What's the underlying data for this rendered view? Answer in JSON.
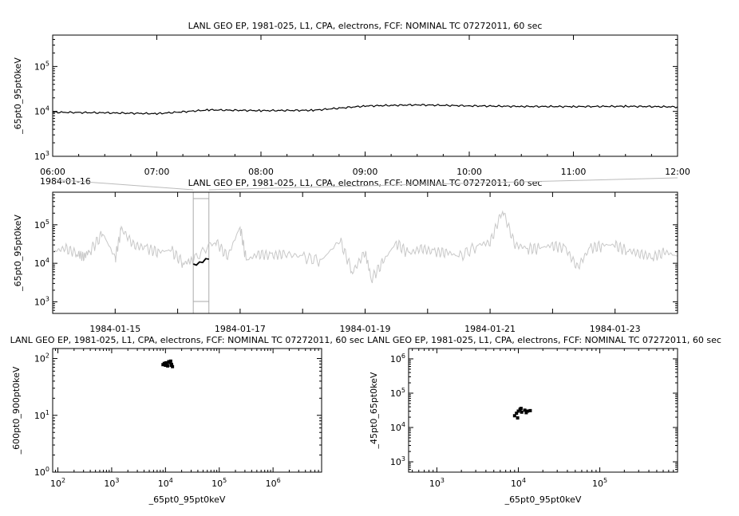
{
  "chart_data": [
    {
      "type": "line",
      "title": "LANL GEO EP, 1981-025, L1, CPA, electrons, FCF: NOMINAL TC 07272011, 60 sec",
      "ylabel": "_65pt0_95pt0keV",
      "xlabel": "",
      "date_label": "1984-01-16",
      "yscale": "log",
      "ylim": [
        1000,
        500000
      ],
      "xlim": [
        "06:00",
        "12:00"
      ],
      "ytick_labels": [
        {
          "base": "10",
          "exp": "3"
        },
        {
          "base": "10",
          "exp": "4"
        },
        {
          "base": "10",
          "exp": "5"
        }
      ],
      "xtick_labels": [
        "06:00",
        "07:00",
        "08:00",
        "09:00",
        "10:00",
        "11:00",
        "12:00"
      ],
      "series": [
        {
          "color": "#000000",
          "x_hours": [
            6.0,
            6.5,
            7.0,
            7.5,
            8.0,
            8.5,
            9.0,
            9.5,
            10.0,
            10.5,
            11.0,
            11.5,
            12.0
          ],
          "values": [
            9600,
            9300,
            8900,
            10800,
            10400,
            10600,
            13200,
            14000,
            13300,
            12900,
            12800,
            13000,
            12600
          ]
        }
      ]
    },
    {
      "type": "line",
      "title": "LANL GEO EP, 1981-025, L1, CPA, electrons, FCF: NOMINAL TC 07272011, 60 sec",
      "ylabel": "_65pt0_95pt0keV",
      "yscale": "log",
      "ylim": [
        500,
        700000
      ],
      "xlim": [
        "1984-01-14",
        "1984-01-24"
      ],
      "ytick_labels": [
        {
          "base": "10",
          "exp": "3"
        },
        {
          "base": "10",
          "exp": "4"
        },
        {
          "base": "10",
          "exp": "5"
        }
      ],
      "xtick_labels": [
        "1984-01-15",
        "1984-01-17",
        "1984-01-19",
        "1984-01-21",
        "1984-01-23"
      ],
      "highlight_range": [
        "1984-01-16 06:00",
        "1984-01-16 12:00"
      ],
      "series": [
        {
          "color": "#c8c8c8",
          "x_days": [
            0.0,
            0.2,
            0.4,
            0.5,
            0.6,
            0.8,
            1.0,
            1.1,
            1.3,
            1.5,
            1.7,
            1.9,
            2.1,
            2.25,
            2.6,
            2.8,
            3.0,
            3.1,
            3.3,
            3.5,
            3.7,
            4.0,
            4.3,
            4.6,
            4.8,
            5.0,
            5.1,
            5.3,
            5.5,
            5.7,
            5.9,
            6.1,
            6.3,
            6.5,
            6.8,
            7.0,
            7.2,
            7.4,
            7.6,
            7.8,
            8.0,
            8.2,
            8.4,
            8.6,
            8.8,
            9.0,
            9.2,
            9.4,
            9.6,
            9.8,
            10.0
          ],
          "values": [
            20000,
            25000,
            18000,
            15000,
            22000,
            60000,
            14000,
            80000,
            30000,
            25000,
            20000,
            22000,
            10000,
            12500,
            40000,
            15000,
            90000,
            12000,
            18000,
            16000,
            18000,
            15000,
            12000,
            40000,
            6000,
            20000,
            4000,
            12000,
            35000,
            18000,
            25000,
            20000,
            20000,
            15000,
            30000,
            35000,
            250000,
            30000,
            25000,
            25000,
            30000,
            25000,
            8000,
            25000,
            30000,
            30000,
            22000,
            18000,
            15000,
            20000,
            15000
          ]
        },
        {
          "color": "#000000",
          "x_days": [
            2.25,
            2.3,
            2.35,
            2.4,
            2.45,
            2.5
          ],
          "values": [
            9600,
            9000,
            10800,
            10500,
            13200,
            12800
          ]
        }
      ]
    },
    {
      "type": "scatter",
      "title": "LANL GEO EP, 1981-025, L1, CPA, electrons, FCF: NOMINAL TC 07272011, 60 sec",
      "xlabel": "_65pt0_95pt0keV",
      "ylabel": "_600pt0_900pt0keV",
      "xscale": "log",
      "yscale": "log",
      "xlim": [
        80,
        8000000
      ],
      "ylim": [
        1,
        150
      ],
      "xtick_labels": [
        {
          "base": "10",
          "exp": "2"
        },
        {
          "base": "10",
          "exp": "3"
        },
        {
          "base": "10",
          "exp": "4"
        },
        {
          "base": "10",
          "exp": "5"
        },
        {
          "base": "10",
          "exp": "6"
        }
      ],
      "ytick_labels": [
        {
          "base": "10",
          "exp": "0"
        },
        {
          "base": "10",
          "exp": "1"
        },
        {
          "base": "10",
          "exp": "2"
        }
      ],
      "points": [
        [
          9000,
          78
        ],
        [
          9500,
          82
        ],
        [
          10000,
          76
        ],
        [
          10500,
          80
        ],
        [
          11000,
          74
        ],
        [
          12000,
          85
        ],
        [
          12500,
          90
        ],
        [
          13000,
          79
        ],
        [
          13500,
          72
        ],
        [
          11500,
          88
        ],
        [
          10200,
          84
        ],
        [
          12800,
          76
        ]
      ]
    },
    {
      "type": "scatter",
      "title": "LANL GEO EP, 1981-025, L1, CPA, electrons, FCF: NOMINAL TC 07272011, 60 sec",
      "xlabel": "_65pt0_95pt0keV",
      "ylabel": "_45pt0_65pt0keV",
      "xscale": "log",
      "yscale": "log",
      "xlim": [
        450,
        900000
      ],
      "ylim": [
        500,
        2000000
      ],
      "xtick_labels": [
        {
          "base": "10",
          "exp": "3"
        },
        {
          "base": "10",
          "exp": "4"
        },
        {
          "base": "10",
          "exp": "5"
        }
      ],
      "ytick_labels": [
        {
          "base": "10",
          "exp": "3"
        },
        {
          "base": "10",
          "exp": "4"
        },
        {
          "base": "10",
          "exp": "5"
        },
        {
          "base": "10",
          "exp": "6"
        }
      ],
      "points": [
        [
          9000,
          22000
        ],
        [
          9500,
          26000
        ],
        [
          10000,
          30000
        ],
        [
          10500,
          34000
        ],
        [
          11000,
          28000
        ],
        [
          12000,
          32000
        ],
        [
          13000,
          30000
        ],
        [
          14000,
          31000
        ],
        [
          9800,
          19000
        ],
        [
          10800,
          36000
        ],
        [
          12500,
          27000
        ]
      ]
    }
  ]
}
